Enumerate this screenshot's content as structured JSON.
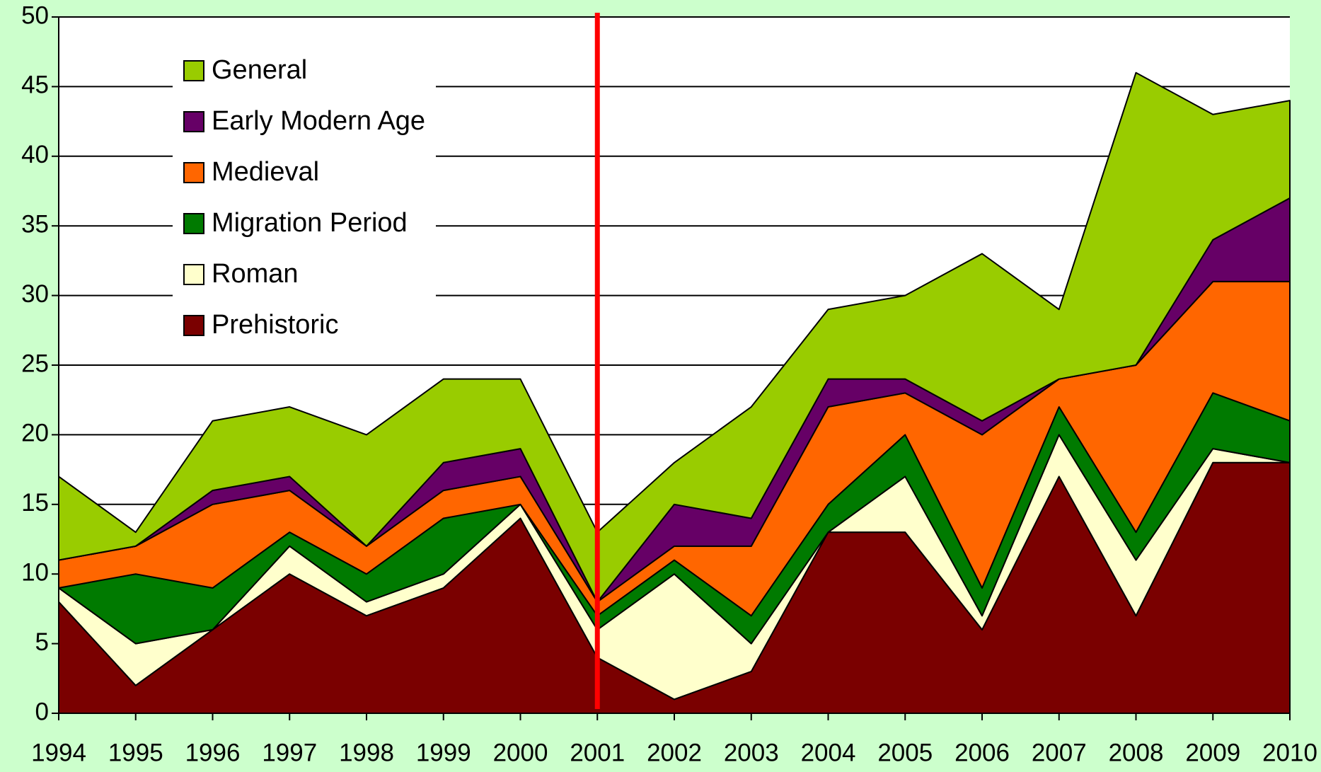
{
  "chart_data": {
    "type": "stacked_area",
    "categories": [
      "1994",
      "1995",
      "1996",
      "1997",
      "1998",
      "1999",
      "2000",
      "2001",
      "2002",
      "2003",
      "2004",
      "2005",
      "2006",
      "2007",
      "2008",
      "2009",
      "2010"
    ],
    "series": [
      {
        "name": "Prehistoric",
        "color": "#7a0000",
        "values": [
          8,
          2,
          6,
          10,
          7,
          9,
          14,
          4,
          1,
          3,
          13,
          13,
          6,
          17,
          7,
          18,
          18
        ]
      },
      {
        "name": "Roman",
        "color": "#ffffcc",
        "values": [
          1,
          3,
          0,
          2,
          1,
          1,
          1,
          2,
          9,
          2,
          0,
          4,
          1,
          3,
          4,
          1,
          0
        ]
      },
      {
        "name": "Migration Period",
        "color": "#007a00",
        "values": [
          0,
          5,
          3,
          1,
          2,
          4,
          0,
          1,
          1,
          2,
          2,
          3,
          2,
          2,
          2,
          4,
          3
        ]
      },
      {
        "name": "Medieval",
        "color": "#ff6600",
        "values": [
          2,
          2,
          6,
          3,
          2,
          2,
          2,
          1,
          1,
          5,
          7,
          3,
          11,
          2,
          12,
          8,
          10
        ]
      },
      {
        "name": "Early Modern Age",
        "color": "#660066",
        "values": [
          0,
          0,
          1,
          1,
          0,
          2,
          2,
          0,
          3,
          2,
          2,
          1,
          1,
          0,
          0,
          3,
          6
        ]
      },
      {
        "name": "General",
        "color": "#99cc00",
        "values": [
          6,
          1,
          5,
          5,
          8,
          6,
          5,
          5,
          3,
          8,
          5,
          6,
          12,
          5,
          21,
          9,
          7
        ]
      }
    ],
    "ylim": [
      0,
      50
    ],
    "yticks": [
      0,
      5,
      10,
      15,
      20,
      25,
      30,
      35,
      40,
      45,
      50
    ],
    "grid": true,
    "legend": "upper left",
    "vline": {
      "x": "2001",
      "color": "#ff0000"
    }
  }
}
